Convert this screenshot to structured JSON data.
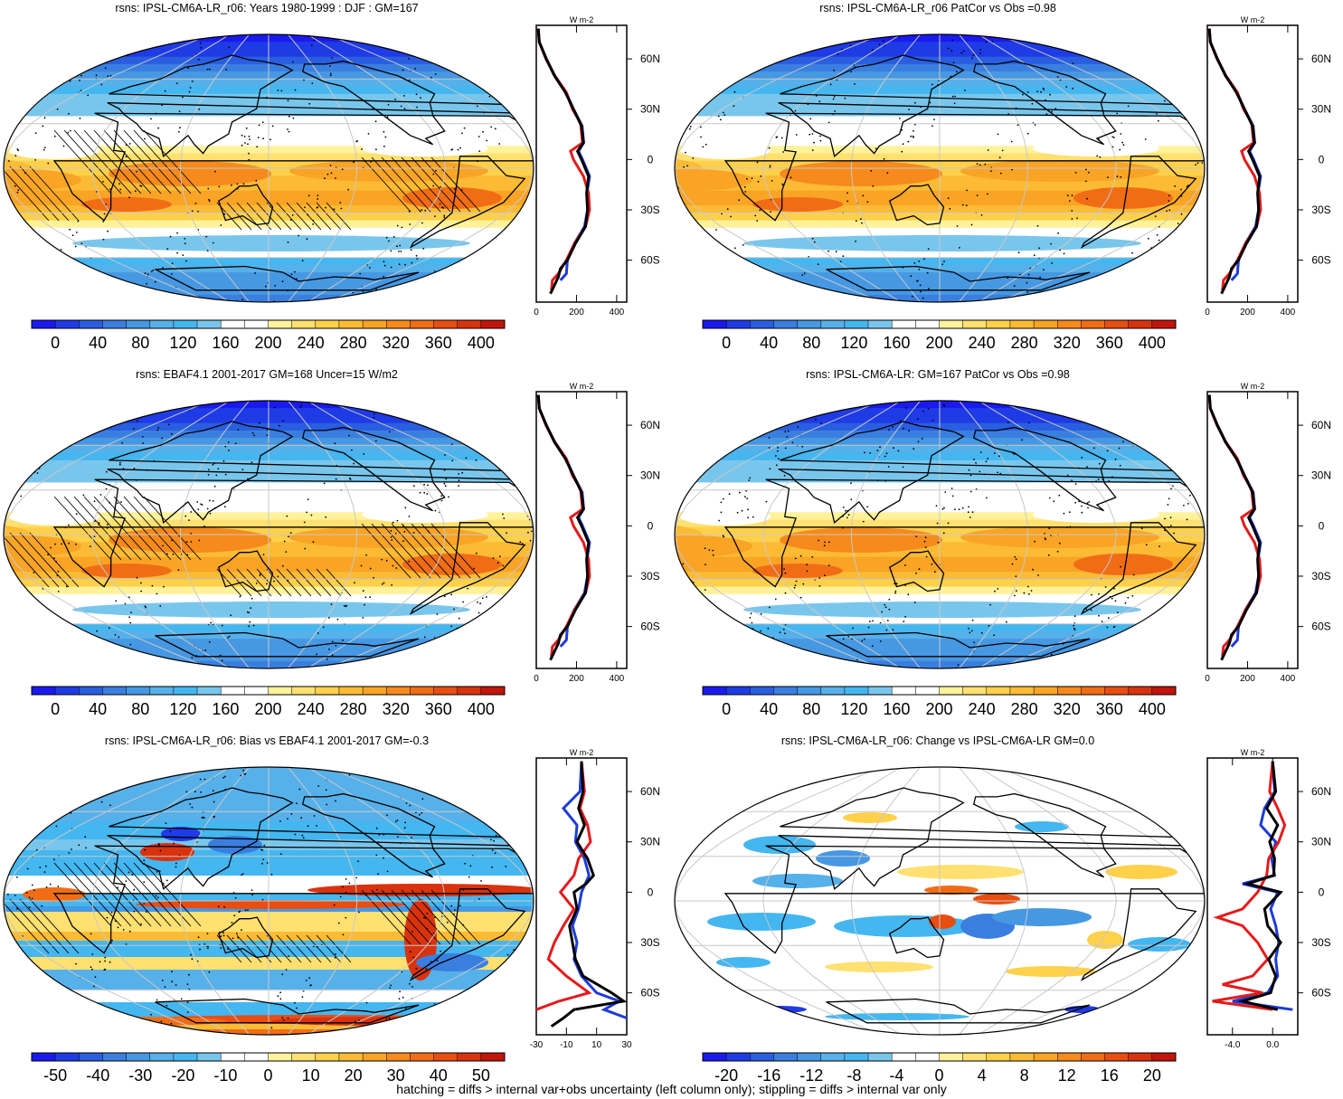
{
  "chart_data": [
    {
      "type": "heatmap",
      "title": "rsns: IPSL-CM6A-LR_r06: Years 1980-1999 : DJF : GM=167",
      "colorbar_ticks": [
        "0",
        "40",
        "80",
        "120",
        "160",
        "200",
        "240",
        "280",
        "320",
        "360",
        "400"
      ],
      "profile": {
        "unit": "W m-2",
        "xticks": [
          "0",
          "200",
          "400"
        ],
        "xlim": [
          0,
          450
        ],
        "lat_ticks": [
          "60N",
          "30N",
          "0",
          "30S",
          "60S"
        ]
      },
      "pattern": "clim",
      "hatched": true
    },
    {
      "type": "heatmap",
      "title": "rsns: IPSL-CM6A-LR_r06 PatCor vs Obs =0.98",
      "colorbar_ticks": [
        "0",
        "40",
        "80",
        "120",
        "160",
        "200",
        "240",
        "280",
        "320",
        "360",
        "400"
      ],
      "profile": {
        "unit": "W m-2",
        "xticks": [
          "0",
          "200",
          "400"
        ],
        "xlim": [
          0,
          450
        ],
        "lat_ticks": [
          "60N",
          "30N",
          "0",
          "30S",
          "60S"
        ]
      },
      "pattern": "clim",
      "hatched": false
    },
    {
      "type": "heatmap",
      "title": "rsns: EBAF4.1 2001-2017 GM=168 Uncer=15 W/m2",
      "colorbar_ticks": [
        "0",
        "40",
        "80",
        "120",
        "160",
        "200",
        "240",
        "280",
        "320",
        "360",
        "400"
      ],
      "profile": {
        "unit": "W m-2",
        "xticks": [
          "0",
          "200",
          "400"
        ],
        "xlim": [
          0,
          450
        ],
        "lat_ticks": [
          "60N",
          "30N",
          "0",
          "30S",
          "60S"
        ]
      },
      "pattern": "clim",
      "hatched": true
    },
    {
      "type": "heatmap",
      "title": "rsns: IPSL-CM6A-LR: GM=167 PatCor vs Obs =0.98",
      "colorbar_ticks": [
        "0",
        "40",
        "80",
        "120",
        "160",
        "200",
        "240",
        "280",
        "320",
        "360",
        "400"
      ],
      "profile": {
        "unit": "W m-2",
        "xticks": [
          "0",
          "200",
          "400"
        ],
        "xlim": [
          0,
          450
        ],
        "lat_ticks": [
          "60N",
          "30N",
          "0",
          "30S",
          "60S"
        ]
      },
      "pattern": "clim",
      "hatched": false
    },
    {
      "type": "heatmap",
      "title": "rsns: IPSL-CM6A-LR_r06: Bias vs EBAF4.1 2001-2017 GM=-0.3",
      "colorbar_ticks": [
        "-50",
        "-40",
        "-30",
        "-20",
        "-10",
        "0",
        "10",
        "20",
        "30",
        "40",
        "50"
      ],
      "profile": {
        "unit": "W m-2",
        "xticks": [
          "-30",
          "-10",
          "10",
          "30"
        ],
        "xlim": [
          -30,
          30
        ],
        "lat_ticks": [
          "60N",
          "30N",
          "0",
          "30S",
          "60S"
        ]
      },
      "pattern": "bias",
      "hatched": true
    },
    {
      "type": "heatmap",
      "title": "rsns: IPSL-CM6A-LR_r06: Change vs IPSL-CM6A-LR GM=0.0",
      "colorbar_ticks": [
        "-20",
        "-16",
        "-12",
        "-8",
        "-4",
        "0",
        "4",
        "8",
        "12",
        "16",
        "20"
      ],
      "profile": {
        "unit": "W m-2",
        "xticks": [
          "-4.0",
          "0.0"
        ],
        "xlim": [
          -6.5,
          2.5
        ],
        "lat_ticks": [
          "60N",
          "30N",
          "0",
          "30S",
          "60S"
        ]
      },
      "pattern": "change",
      "hatched": false
    }
  ],
  "palette": [
    "#1a1aef",
    "#1f3be6",
    "#2a5ee0",
    "#3a7fe0",
    "#4698e3",
    "#56b0ea",
    "#44b6f0",
    "#79c6ed",
    "#ffffff",
    "#ffffff",
    "#fff29a",
    "#ffe070",
    "#ffd04a",
    "#fcbb34",
    "#f9a425",
    "#f68a1c",
    "#f06d16",
    "#e84e12",
    "#d8330e",
    "#c2150b"
  ],
  "footer": "hatching = diffs > internal var+obs uncertainty (left column only); stippling = diffs > internal var only",
  "series_colors": {
    "model": "#e41a1c",
    "other": "#1f3bd8",
    "obs": "#000000"
  }
}
